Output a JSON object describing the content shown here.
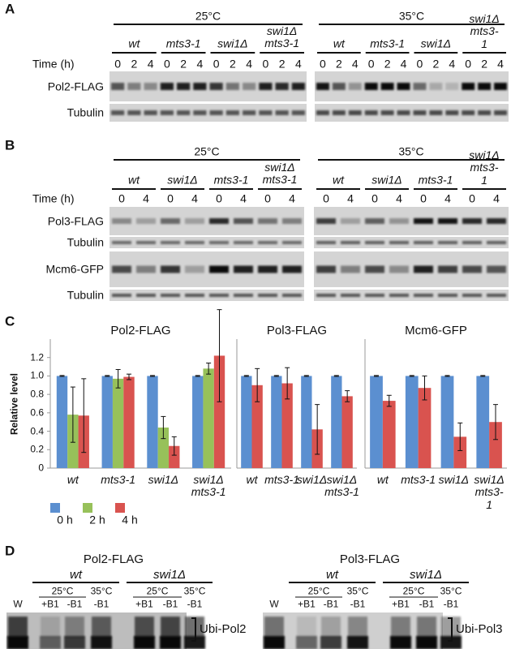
{
  "panel_a": {
    "label": "A",
    "conditions": [
      "25°C",
      "35°C"
    ],
    "genotypes": [
      "wt",
      "mts3-1",
      "swi1Δ",
      "swi1Δ\nmts3-1"
    ],
    "time_label": "Time (h)",
    "times": [
      "0",
      "2",
      "4"
    ],
    "rows": [
      "Pol2-FLAG",
      "Tubulin"
    ]
  },
  "panel_b": {
    "label": "B",
    "conditions": [
      "25°C",
      "35°C"
    ],
    "genotypes": [
      "wt",
      "swi1Δ",
      "mts3-1",
      "swi1Δ\nmts3-1"
    ],
    "time_label": "Time (h)",
    "times": [
      "0",
      "4"
    ],
    "rows": [
      "Pol3-FLAG",
      "Tubulin",
      "Mcm6-GFP",
      "Tubulin"
    ]
  },
  "panel_c": {
    "label": "C"
  },
  "chart_data": [
    {
      "type": "bar",
      "title": "Pol2-FLAG",
      "y_label": "Relative level",
      "categories": [
        "wt",
        "mts3-1",
        "swi1Δ",
        "swi1Δ\nmts3-1"
      ],
      "series": [
        {
          "name": "0 h",
          "color": "#5b8fd0",
          "values": [
            1,
            1,
            1,
            1
          ],
          "errors": [
            0.005,
            0.005,
            0.005,
            0.005
          ]
        },
        {
          "name": "2 h",
          "color": "#97c15a",
          "values": [
            0.58,
            0.97,
            0.44,
            1.08
          ],
          "errors": [
            0.3,
            0.1,
            0.12,
            0.06
          ]
        },
        {
          "name": "4 h",
          "color": "#d9534f",
          "values": [
            0.57,
            0.99,
            0.24,
            1.22
          ],
          "errors": [
            0.4,
            0.03,
            0.1,
            0.5
          ]
        }
      ],
      "ylim": [
        0,
        1.4
      ],
      "yticks": [
        0,
        0.2,
        0.4,
        0.6,
        0.8,
        {
          "value": 1,
          "label": "1.0"
        },
        1.2
      ]
    },
    {
      "type": "bar",
      "title": "Pol3-FLAG",
      "categories": [
        "wt",
        "mts3-1",
        "swi1Δ",
        "swi1Δ\nmts3-1"
      ],
      "series": [
        {
          "color": "#5b8fd0",
          "values": [
            1,
            1,
            1,
            1
          ],
          "errors": [
            0.005,
            0.005,
            0.005,
            0.005
          ]
        },
        {
          "color": "#d9534f",
          "values": [
            0.9,
            0.92,
            0.42,
            0.78
          ],
          "errors": [
            0.18,
            0.17,
            0.27,
            0.06
          ]
        }
      ],
      "ylim": [
        0,
        1.4
      ]
    },
    {
      "type": "bar",
      "title": "Mcm6-GFP",
      "categories": [
        "wt",
        "mts3-1",
        "swi1Δ",
        "swi1Δ\nmts3-1"
      ],
      "series": [
        {
          "color": "#5b8fd0",
          "values": [
            1,
            1,
            1,
            1
          ],
          "errors": [
            0.005,
            0.005,
            0.005,
            0.005
          ]
        },
        {
          "color": "#d9534f",
          "values": [
            0.73,
            0.87,
            0.34,
            0.5
          ],
          "errors": [
            0.06,
            0.13,
            0.15,
            0.19
          ]
        }
      ],
      "ylim": [
        0,
        1.4
      ]
    }
  ],
  "panel_d": {
    "label": "D",
    "blots": [
      {
        "title": "Pol2-FLAG",
        "genotypes": [
          "wt",
          "swi1Δ"
        ],
        "marker_lane": "W",
        "temperatures": [
          "25°C",
          "35°C"
        ],
        "treatments": [
          "+B1",
          "-B1",
          "-B1"
        ],
        "band_label": "Ubi-Pol2"
      },
      {
        "title": "Pol3-FLAG",
        "genotypes": [
          "wt",
          "swi1Δ"
        ],
        "marker_lane": "W",
        "temperatures": [
          "25°C",
          "35°C"
        ],
        "treatments": [
          "+B1",
          "-B1",
          "-B1"
        ],
        "band_label": "Ubi-Pol3"
      }
    ]
  }
}
